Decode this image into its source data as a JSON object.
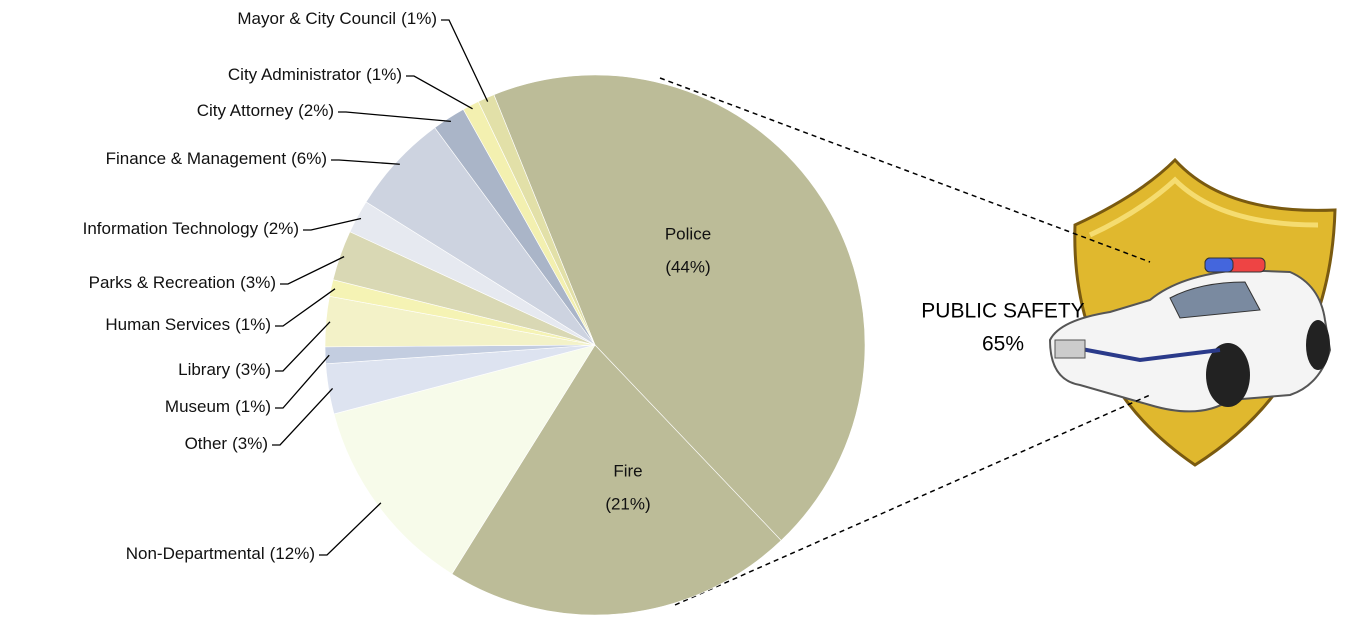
{
  "chart_data": {
    "type": "pie",
    "categories": [
      "Police",
      "Fire",
      "Non-Departmental",
      "Other",
      "Museum",
      "Library",
      "Human Services",
      "Parks & Recreation",
      "Information Technology",
      "Finance & Management",
      "City Attorney",
      "City Administrator",
      "Mayor & City Council"
    ],
    "values": [
      44,
      21,
      12,
      3,
      1,
      3,
      1,
      3,
      2,
      6,
      2,
      1,
      1
    ],
    "value_labels": [
      "(44%)",
      "(21%)",
      "(12%)",
      "(3%)",
      "(1%)",
      "(3%)",
      "(1%)",
      "(3%)",
      "(2%)",
      "(6%)",
      "(2%)",
      "(1%)",
      "(1%)"
    ],
    "colors": [
      "#bcbc98",
      "#bcbc98",
      "#f7fbea",
      "#dde3f0",
      "#c3cde0",
      "#f3f2c8",
      "#f5f3b4",
      "#d9d8b4",
      "#e6e9f0",
      "#cdd3e0",
      "#aab5c8",
      "#f3f0b0",
      "#e2e0a8"
    ],
    "annotation_lines": [
      "PUBLIC SAFETY",
      "65%"
    ]
  }
}
